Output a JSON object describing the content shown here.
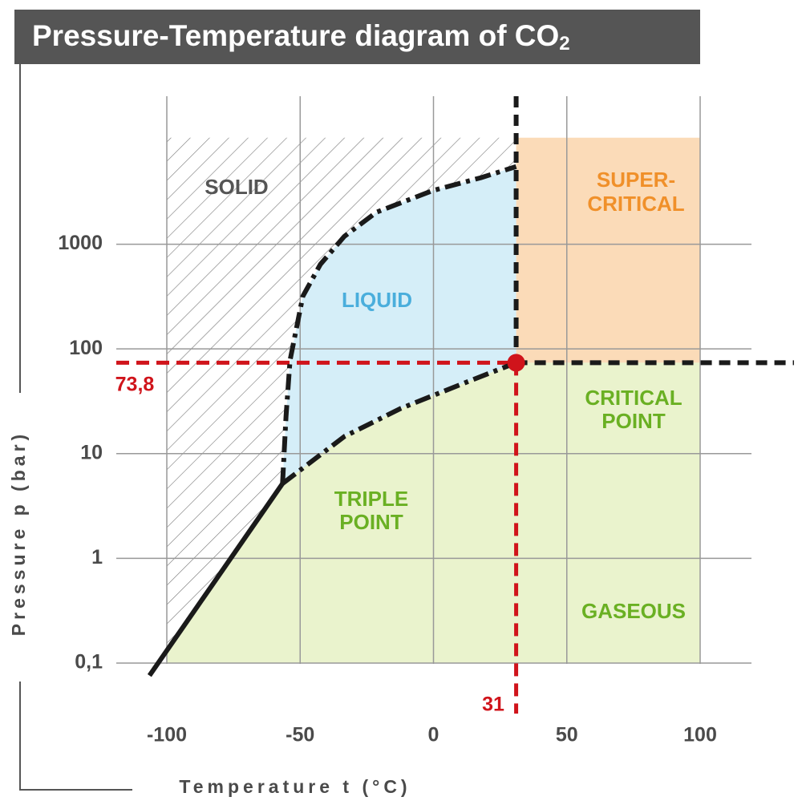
{
  "chart_data": {
    "type": "phase",
    "title": "Pressure-Temperature diagram of CO",
    "title_sub": "2",
    "xlabel": "Temperature t (°C)",
    "ylabel": "Pressure p (bar)",
    "xlim": [
      -100,
      100
    ],
    "ylim": [
      0.1,
      25000
    ],
    "yscale": "log",
    "xticks": [
      -100,
      -50,
      0,
      50,
      100
    ],
    "yticks": [
      {
        "value": 0.1,
        "label": "0,1"
      },
      1,
      10,
      100,
      1000
    ],
    "grid": true,
    "series": [
      {
        "color": "#1a1a1a",
        "style": "solid",
        "x": [
          -106.5,
          -56.6
        ],
        "values": [
          0.076,
          5.18
        ]
      },
      {
        "color": "#1a1a1a",
        "style": "dashdot",
        "x": [
          -56.6,
          -55.3,
          -53.8,
          -49.0,
          -42.4,
          -33.4,
          -21.4,
          -0.3,
          17.7,
          31
        ],
        "values": [
          5.18,
          22.6,
          77.6,
          318,
          643,
          1190,
          2020,
          3250,
          4310,
          5510
        ]
      },
      {
        "color": "#1a1a1a",
        "style": "dashdot",
        "x": [
          -56.6,
          -33.4,
          -12.3,
          11.7,
          31
        ],
        "values": [
          5.18,
          14.6,
          27.0,
          47.4,
          73.8
        ]
      }
    ],
    "critical_point": {
      "x": 31,
      "value": 73.8,
      "value_label": "73,8",
      "color": "#d0141b"
    },
    "region_top": 10400,
    "region_colors": {
      "liquid": "#d5eef8",
      "supercritical": "#fbdbb8",
      "gaseous": "#eaf3cd"
    },
    "annotations": [
      "SOLID",
      "LIQUID",
      "SUPER-",
      "CRITICAL",
      "CRITICAL",
      "POINT",
      "TRIPLE",
      "POINT",
      "GASEOUS"
    ]
  }
}
